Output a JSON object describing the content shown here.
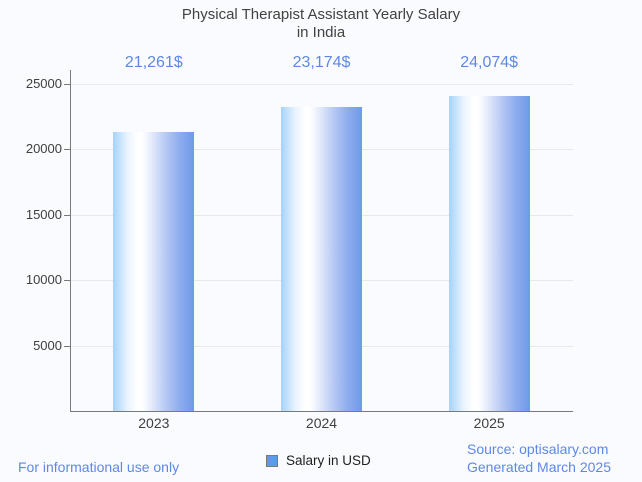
{
  "chart_data": {
    "type": "bar",
    "title": "Physical Therapist Assistant Yearly Salary",
    "subtitle": "in India",
    "categories": [
      "2023",
      "2024",
      "2025"
    ],
    "series": [
      {
        "name": "Salary in USD",
        "values": [
          21261,
          23174,
          24074
        ]
      }
    ],
    "value_labels": [
      "21,261$",
      "23,174$",
      "24,074$"
    ],
    "xlabel": "",
    "ylabel": "",
    "ylim": [
      0,
      25000
    ],
    "yticks": [
      5000,
      10000,
      15000,
      20000,
      25000
    ],
    "ytick_labels": [
      "5000",
      "10000",
      "15000",
      "20000",
      "25000"
    ],
    "grid": true,
    "legend_position": "bottom"
  },
  "legend": {
    "label": "Salary in USD",
    "swatch_color": "#5c9ae8"
  },
  "footer": {
    "disclaimer": "For informational use only",
    "source": "Source: optisalary.com",
    "generated": "Generated March 2025"
  },
  "colors": {
    "background": "#fafbfe",
    "accent_blue": "#5e88e4",
    "title_text": "#424242",
    "tick_text": "#3f3f3f",
    "legend_text": "#1f1f1f",
    "axis_line": "#7a7a7a",
    "grid_line": "#e8e8e8",
    "bar_gradient_left": "#a6d2fa",
    "bar_gradient_mid": "#ffffff",
    "bar_gradient_right": "#6e9ae9"
  }
}
